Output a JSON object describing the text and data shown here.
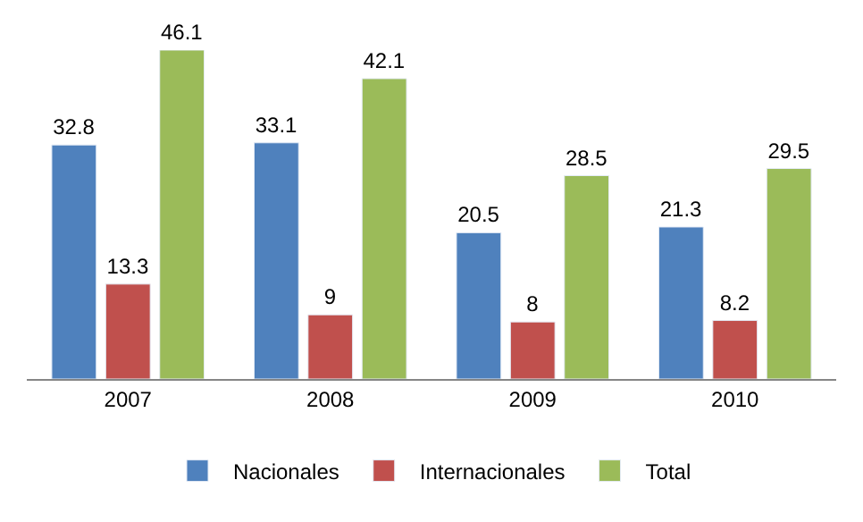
{
  "chart_data": {
    "type": "bar",
    "categories": [
      "2007",
      "2008",
      "2009",
      "2010"
    ],
    "series": [
      {
        "name": "Nacionales",
        "color": "#4f81bd",
        "values": [
          32.8,
          33.1,
          20.5,
          21.3
        ]
      },
      {
        "name": "Internacionales",
        "color": "#c0504d",
        "values": [
          13.3,
          9,
          8,
          8.2
        ]
      },
      {
        "name": "Total",
        "color": "#9bbb59",
        "values": [
          46.1,
          42.1,
          28.5,
          29.5
        ]
      }
    ],
    "data_labels": true,
    "legend": "bottom"
  }
}
